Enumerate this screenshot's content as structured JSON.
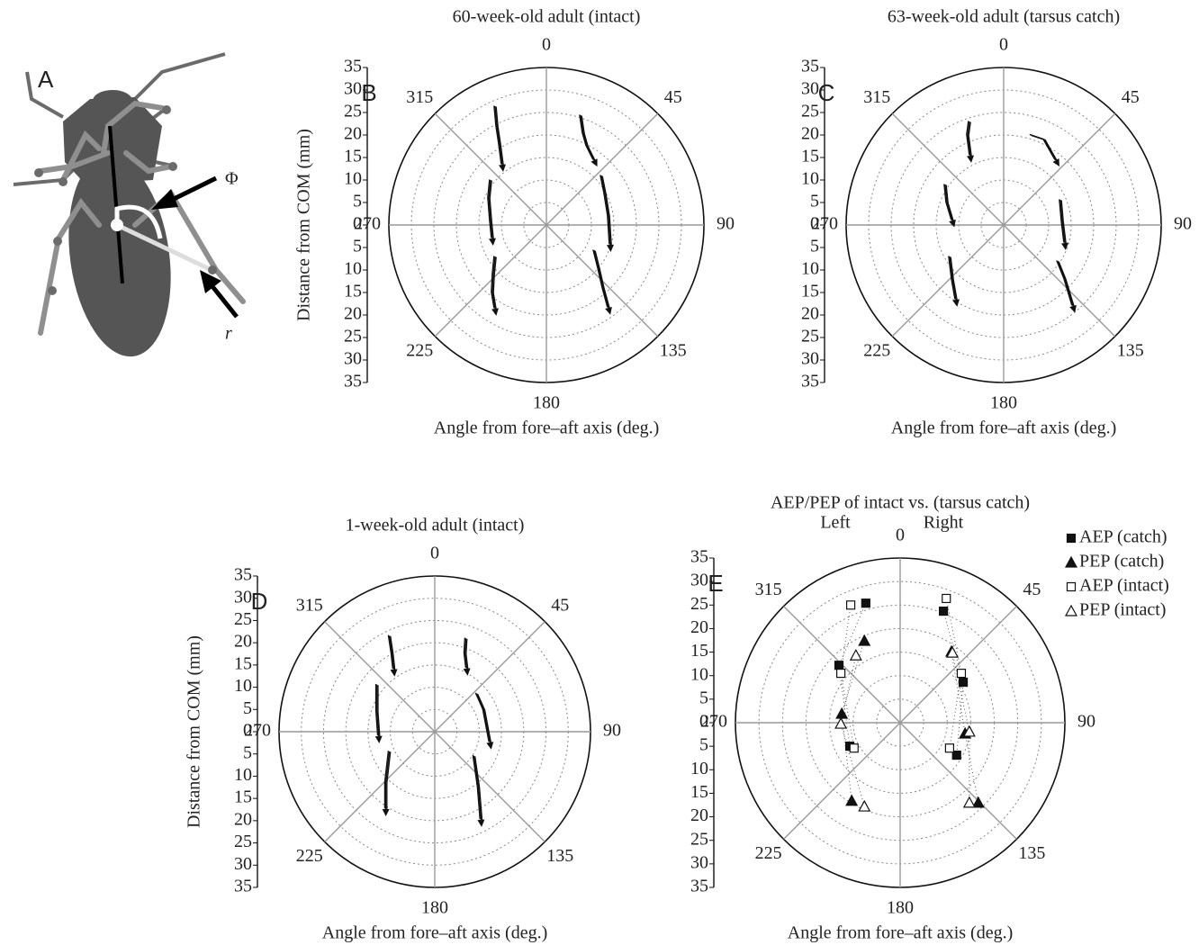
{
  "panel_a": {
    "label": "A",
    "angle_symbol": "Φ",
    "radius_symbol": "r"
  },
  "chart_data": [
    {
      "type": "polar",
      "label": "B",
      "title": "60-week-old adult (intact)",
      "xlabel": "Angle from fore–aft axis (deg.)",
      "ylabel": "Distance from COM (mm)",
      "rlim": [
        0,
        35
      ],
      "rticks": [
        0,
        5,
        10,
        15,
        20,
        25,
        30,
        35
      ],
      "thetaticks": [
        0,
        45,
        90,
        135,
        180,
        225,
        270,
        315
      ],
      "grid": true,
      "series": [
        {
          "color": "#111111",
          "x": [
            -11.4,
            -11,
            -10.4,
            -9.8
          ],
          "y": [
            26.4,
            22,
            18,
            13.4
          ]
        },
        {
          "color": "#111111",
          "x": [
            7.6,
            8.2,
            9,
            10.6
          ],
          "y": [
            24.4,
            20.4,
            17.6,
            14.4
          ]
        },
        {
          "color": "#111111",
          "x": [
            -12.4,
            -12.8,
            -12.4,
            -12
          ],
          "y": [
            10,
            6,
            1,
            -3
          ]
        },
        {
          "color": "#111111",
          "x": [
            12.2,
            13,
            13.8,
            14.2
          ],
          "y": [
            11,
            7,
            2,
            -4.4
          ]
        },
        {
          "color": "#111111",
          "x": [
            -11.4,
            -11.8,
            -12,
            -11.4
          ],
          "y": [
            -7,
            -11,
            -15,
            -18.6
          ]
        },
        {
          "color": "#111111",
          "x": [
            10.6,
            11.6,
            12.6,
            13.8
          ],
          "y": [
            -5.6,
            -9.6,
            -14,
            -18.4
          ]
        }
      ]
    },
    {
      "type": "polar",
      "label": "C",
      "title": "63-week-old adult (tarsus catch)",
      "xlabel": "Angle from fore–aft axis (deg.)",
      "rlim": [
        0,
        35
      ],
      "rticks": [
        0,
        5,
        10,
        15,
        20,
        25,
        30,
        35
      ],
      "thetaticks": [
        0,
        45,
        90,
        135,
        180,
        225,
        270,
        315
      ],
      "grid": true,
      "series": [
        {
          "color": "#111111",
          "x": [
            -7.6,
            -8,
            -7.4
          ],
          "y": [
            23,
            20,
            15.4
          ]
        },
        {
          "color": "#111111",
          "x": [
            6,
            9,
            11.6
          ],
          "y": [
            20,
            19,
            14.4
          ]
        },
        {
          "color": "#111111",
          "x": [
            -13,
            -12.6,
            -11.4
          ],
          "y": [
            9,
            5,
            1
          ]
        },
        {
          "color": "#111111",
          "x": [
            12.6,
            13,
            13.6
          ],
          "y": [
            5.6,
            1,
            -4
          ]
        },
        {
          "color": "#111111",
          "x": [
            -12,
            -11.4,
            -10.6
          ],
          "y": [
            -7,
            -12,
            -16.6
          ]
        },
        {
          "color": "#111111",
          "x": [
            12,
            13.6,
            15.4
          ],
          "y": [
            -8,
            -12,
            -18
          ]
        }
      ]
    },
    {
      "type": "polar",
      "label": "D",
      "title": "1-week-old adult (intact)",
      "xlabel": "Angle from fore–aft axis (deg.)",
      "ylabel": "Distance from COM (mm)",
      "rlim": [
        0,
        35
      ],
      "rticks": [
        0,
        5,
        10,
        15,
        20,
        25,
        30,
        35
      ],
      "thetaticks": [
        0,
        45,
        90,
        135,
        180,
        225,
        270,
        315
      ],
      "grid": true,
      "series": [
        {
          "color": "#111111",
          "x": [
            -10.2,
            -9.6,
            -9.2
          ],
          "y": [
            21.6,
            17.6,
            14
          ]
        },
        {
          "color": "#111111",
          "x": [
            7,
            6.8,
            7.2
          ],
          "y": [
            21,
            17.6,
            14.2
          ]
        },
        {
          "color": "#111111",
          "x": [
            -13,
            -13,
            -12.6
          ],
          "y": [
            10.6,
            4.6,
            -1
          ]
        },
        {
          "color": "#111111",
          "x": [
            9.4,
            11,
            12.4
          ],
          "y": [
            8.6,
            5,
            -2.4
          ]
        },
        {
          "color": "#111111",
          "x": [
            -10.2,
            -11,
            -11
          ],
          "y": [
            -4.4,
            -11.4,
            -17.4
          ]
        },
        {
          "color": "#111111",
          "x": [
            8.8,
            9.8,
            10.4
          ],
          "y": [
            -5.4,
            -12.4,
            -19.8
          ]
        }
      ]
    },
    {
      "type": "polar-markers",
      "label": "E",
      "title": "AEP/PEP of intact vs. (tarsus catch)",
      "xlabel": "Angle from fore–aft axis (deg.)",
      "side_labels": [
        "Left",
        "Right"
      ],
      "legend": "right",
      "rlim": [
        0,
        35
      ],
      "rticks": [
        0,
        5,
        10,
        15,
        20,
        25,
        30,
        35
      ],
      "thetaticks": [
        0,
        45,
        90,
        135,
        180,
        225,
        270,
        315
      ],
      "grid": true,
      "series": [
        {
          "name": "AEP (catch)",
          "color": "#111111",
          "marker": "square",
          "filled": true,
          "x": [
            -7.3,
            -13,
            -10.7,
            9.2,
            13.4,
            12
          ],
          "y": [
            25.4,
            12.2,
            -5,
            23.7,
            8.6,
            -6.9
          ]
        },
        {
          "name": "PEP (catch)",
          "color": "#111111",
          "marker": "triangle",
          "filled": true,
          "x": [
            -7.6,
            -12.4,
            -10.3,
            10.9,
            13.8,
            16.6
          ],
          "y": [
            17.4,
            1.9,
            -16.6,
            15.1,
            -2.3,
            -17
          ]
        },
        {
          "name": "AEP (intact)",
          "color": "#111111",
          "marker": "square",
          "filled": false,
          "x": [
            -10.5,
            -12.6,
            -9.8,
            9.8,
            13,
            10.5
          ],
          "y": [
            25,
            10.5,
            -5.4,
            26.4,
            10.5,
            -5.4
          ]
        },
        {
          "name": "PEP (intact)",
          "color": "#111111",
          "marker": "triangle",
          "filled": false,
          "x": [
            -9.4,
            -12.6,
            -7.6,
            11.1,
            14.7,
            14.7
          ],
          "y": [
            14.3,
            -0.2,
            -17.8,
            14.9,
            -1.9,
            -17
          ]
        }
      ]
    }
  ]
}
